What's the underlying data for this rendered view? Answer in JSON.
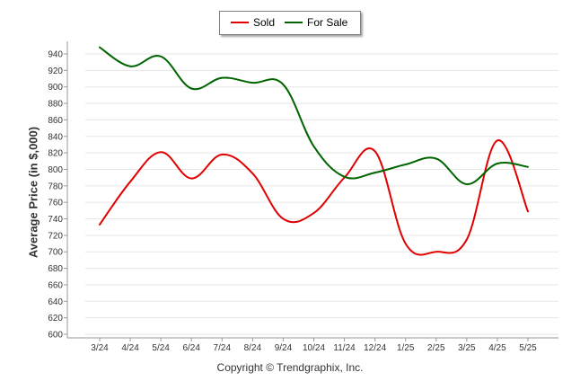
{
  "chart_data": {
    "type": "line",
    "ylabel": "Average Price (in $,000)",
    "xlabel": "",
    "categories": [
      "3/24",
      "4/24",
      "5/24",
      "6/24",
      "7/24",
      "8/24",
      "9/24",
      "10/24",
      "11/24",
      "12/24",
      "1/25",
      "2/25",
      "3/25",
      "4/25",
      "5/25"
    ],
    "yticks": [
      600,
      620,
      640,
      660,
      680,
      700,
      720,
      740,
      760,
      780,
      800,
      820,
      840,
      860,
      880,
      900,
      920,
      940
    ],
    "ylim": [
      600,
      950
    ],
    "grid": true,
    "legend_position": "top-center",
    "series": [
      {
        "name": "Sold",
        "color": "#e00000",
        "values": [
          733,
          785,
          821,
          789,
          818,
          795,
          740,
          747,
          790,
          822,
          710,
          700,
          715,
          835,
          749
        ]
      },
      {
        "name": "For Sale",
        "color": "#006400",
        "values": [
          948,
          925,
          937,
          898,
          911,
          905,
          903,
          828,
          791,
          796,
          806,
          813,
          782,
          807,
          803
        ]
      }
    ],
    "footer": "Copyright © Trendgraphix, Inc."
  }
}
